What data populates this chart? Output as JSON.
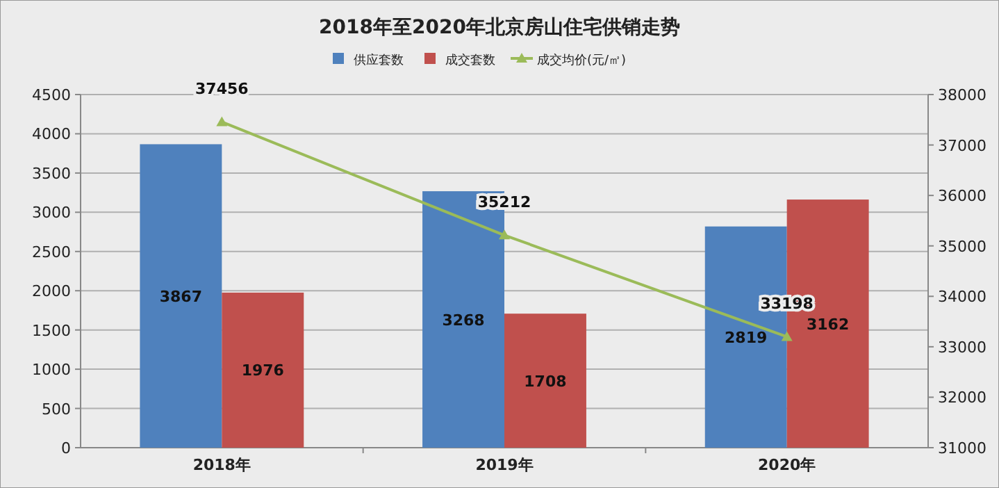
{
  "chart_data": {
    "type": "bar",
    "title": "2018年至2020年北京房山住宅供销走势",
    "categories": [
      "2018年",
      "2019年",
      "2020年"
    ],
    "series": [
      {
        "name": "供应套数",
        "color": "#4f81bd",
        "values": [
          3867,
          3268,
          2819
        ]
      },
      {
        "name": "成交套数",
        "color": "#c0504d",
        "values": [
          1976,
          1708,
          3162
        ]
      },
      {
        "name": "成交均价(元/㎡)",
        "color": "#9bbb59",
        "type": "line",
        "axis": "y2",
        "marker": "triangle",
        "values": [
          37456,
          35212,
          33198
        ]
      }
    ],
    "ylim": [
      0,
      4500
    ],
    "yticks": [
      0,
      500,
      1000,
      1500,
      2000,
      2500,
      3000,
      3500,
      4000,
      4500
    ],
    "y2lim": [
      31000,
      38000
    ],
    "y2ticks": [
      31000,
      32000,
      33000,
      34000,
      35000,
      36000,
      37000,
      38000
    ],
    "grid": "y",
    "legend": "top",
    "data_labels": true
  }
}
